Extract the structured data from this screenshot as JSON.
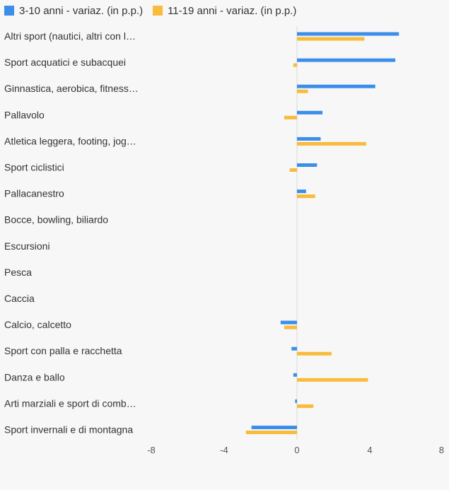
{
  "colors": {
    "series_a": "#3b8eea",
    "series_b": "#f8bb3a",
    "axis_line": "#d8d8d8",
    "label_text": "#333333",
    "tick_text": "#555555"
  },
  "legend": {
    "items": [
      {
        "label": "3-10 anni - variaz. (in p.p.)",
        "color": "#3b8eea"
      },
      {
        "label": "11-19 anni - variaz. (in p.p.)",
        "color": "#f8bb3a"
      }
    ]
  },
  "chart_data": {
    "type": "bar",
    "orientation": "horizontal",
    "categories": [
      "Altri sport (nautici, altri con l…",
      "Sport acquatici e subacquei",
      "Ginnastica, aerobica, fitness…",
      "Pallavolo",
      "Atletica leggera, footing, jog…",
      "Sport ciclistici",
      "Pallacanestro",
      "Bocce, bowling, biliardo",
      "Escursioni",
      "Pesca",
      "Caccia",
      "Calcio, calcetto",
      "Sport con palla e racchetta",
      "Danza e ballo",
      "Arti marziali e sport di comb…",
      "Sport invernali e di montagna"
    ],
    "series": [
      {
        "name": "3-10 anni - variaz. (in p.p.)",
        "values": [
          5.6,
          5.4,
          4.3,
          1.4,
          1.3,
          1.1,
          0.5,
          0,
          0,
          0,
          0,
          -0.9,
          -0.3,
          -0.2,
          -0.1,
          -2.5
        ]
      },
      {
        "name": "11-19 anni - variaz. (in p.p.)",
        "values": [
          3.7,
          -0.2,
          0.6,
          -0.7,
          3.8,
          -0.4,
          1.0,
          0,
          0,
          0,
          0,
          -0.7,
          1.9,
          3.9,
          0.9,
          -2.8
        ]
      }
    ],
    "xlim": [
      -8,
      8
    ],
    "xticks": [
      "-8",
      "-4",
      "0",
      "4",
      "8"
    ],
    "xlabel": "",
    "ylabel": "",
    "legend_position": "top-left",
    "grid": false
  }
}
